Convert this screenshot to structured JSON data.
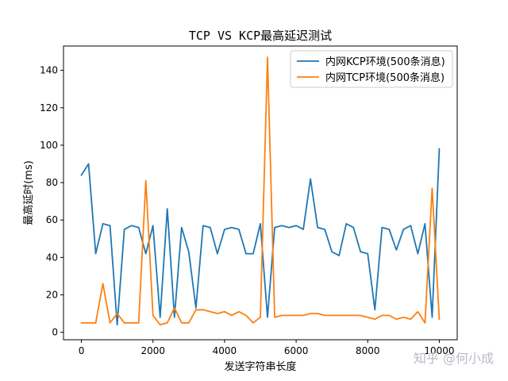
{
  "chart_data": {
    "type": "line",
    "title": "TCP VS KCP最高延迟测试",
    "xlabel": "发送字符串长度",
    "ylabel": "最高延时(ms)",
    "xlim": [
      -500,
      10500
    ],
    "ylim": [
      -4,
      153
    ],
    "xticks": [
      0,
      2000,
      4000,
      6000,
      8000,
      10000
    ],
    "yticks": [
      0,
      20,
      40,
      60,
      80,
      100,
      120,
      140
    ],
    "grid": false,
    "legend_position": "top-right",
    "x": [
      0,
      200,
      400,
      600,
      800,
      1000,
      1200,
      1400,
      1600,
      1800,
      2000,
      2200,
      2400,
      2600,
      2800,
      3000,
      3200,
      3400,
      3600,
      3800,
      4000,
      4200,
      4400,
      4600,
      4800,
      5000,
      5200,
      5400,
      5600,
      5800,
      6000,
      6200,
      6400,
      6600,
      6800,
      7000,
      7200,
      7400,
      7600,
      7800,
      8000,
      8200,
      8400,
      8600,
      8800,
      9000,
      9200,
      9400,
      9600,
      9800,
      10000
    ],
    "series": [
      {
        "name": "内网KCP环境(500条消息)",
        "color": "#1f77b4",
        "values": [
          84,
          90,
          42,
          58,
          57,
          4,
          55,
          57,
          56,
          42,
          57,
          8,
          66,
          8,
          56,
          43,
          13,
          57,
          56,
          42,
          55,
          56,
          55,
          42,
          42,
          58,
          8,
          56,
          57,
          56,
          57,
          55,
          82,
          56,
          55,
          43,
          41,
          58,
          56,
          43,
          42,
          12,
          56,
          55,
          44,
          55,
          57,
          42,
          58,
          8,
          98
        ]
      },
      {
        "name": "内网TCP环境(500条消息)",
        "color": "#ff7f0e",
        "values": [
          5,
          5,
          5,
          26,
          5,
          10,
          5,
          5,
          5,
          81,
          9,
          4,
          5,
          13,
          5,
          5,
          12,
          12,
          11,
          10,
          11,
          9,
          11,
          9,
          5,
          8,
          147,
          8,
          9,
          9,
          9,
          9,
          10,
          10,
          9,
          9,
          9,
          9,
          9,
          9,
          8,
          7,
          9,
          9,
          7,
          8,
          7,
          11,
          5,
          77,
          7
        ]
      }
    ]
  },
  "watermark": "知乎 @何小成"
}
